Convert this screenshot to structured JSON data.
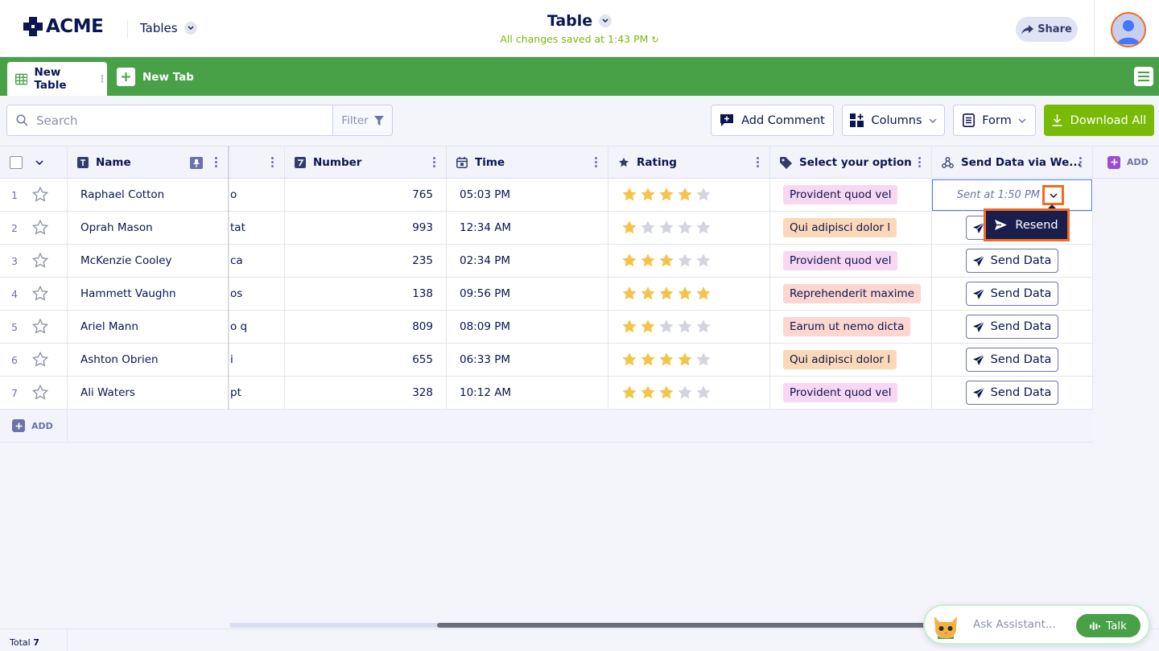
{
  "header": {
    "brand": "ACME",
    "tables_label": "Tables",
    "title": "Table",
    "saved_status": "All changes saved at 1:43 PM",
    "share_label": "Share"
  },
  "tabs": [
    {
      "label": "New Table",
      "active": true
    },
    {
      "label": "New Tab",
      "active": false
    }
  ],
  "toolbar": {
    "search_placeholder": "Search",
    "filter_label": "Filter",
    "add_comment_label": "Add Comment",
    "columns_label": "Columns",
    "form_label": "Form",
    "download_label": "Download All"
  },
  "columns": [
    {
      "label": "Name",
      "icon": "text-type-icon"
    },
    {
      "label": "Number",
      "icon": "number-type-icon"
    },
    {
      "label": "Time",
      "icon": "calendar-icon"
    },
    {
      "label": "Rating",
      "icon": "star-icon"
    },
    {
      "label": "Select your option",
      "icon": "tag-icon"
    },
    {
      "label": "Send Data via We...",
      "icon": "webhook-icon"
    }
  ],
  "add_column_label": "ADD",
  "rows": [
    {
      "num": "1",
      "name": "Raphael Cotton",
      "partial": "o",
      "number": "765",
      "time": "05:03 PM",
      "rating": 4,
      "option": "Provident quod vel",
      "option_color": "#f8d7f2",
      "send": "Sent at 1:50 PM"
    },
    {
      "num": "2",
      "name": "Oprah Mason",
      "partial": "tat",
      "number": "993",
      "time": "12:34 AM",
      "rating": 1,
      "option": "Qui adipisci dolor l",
      "option_color": "#fbd8b8",
      "send": "Send Data"
    },
    {
      "num": "3",
      "name": "McKenzie Cooley",
      "partial": "ca",
      "number": "235",
      "time": "02:34 PM",
      "rating": 3,
      "option": "Provident quod vel",
      "option_color": "#f8d7f2",
      "send": "Send Data"
    },
    {
      "num": "4",
      "name": "Hammett Vaughn",
      "partial": "os",
      "number": "138",
      "time": "09:56 PM",
      "rating": 5,
      "option": "Reprehenderit maxime",
      "option_color": "#fcd6cf",
      "send": "Send Data"
    },
    {
      "num": "5",
      "name": "Ariel Mann",
      "partial": "o q",
      "number": "809",
      "time": "08:09 PM",
      "rating": 2,
      "option": "Earum ut nemo dicta",
      "option_color": "#fcd6cf",
      "send": "Send Data"
    },
    {
      "num": "6",
      "name": "Ashton Obrien",
      "partial": "i",
      "number": "655",
      "time": "06:33 PM",
      "rating": 4,
      "option": "Qui adipisci dolor l",
      "option_color": "#fbd8b8",
      "send": "Send Data"
    },
    {
      "num": "7",
      "name": "Ali Waters",
      "partial": "pt",
      "number": "328",
      "time": "10:12 AM",
      "rating": 3,
      "option": "Provident quod vel",
      "option_color": "#f8d7f2",
      "send": "Send Data"
    }
  ],
  "resend_label": "Resend",
  "add_row_label": "ADD",
  "footer": {
    "total_label": "Total",
    "total_count": "7"
  },
  "assistant": {
    "placeholder": "Ask Assistant...",
    "talk_label": "Talk"
  },
  "colors": {
    "accent_green": "#48a047",
    "download_green": "#78bb07",
    "navy": "#0a1551",
    "highlight_orange": "#f36b22",
    "star_gold": "#f5c34a"
  }
}
